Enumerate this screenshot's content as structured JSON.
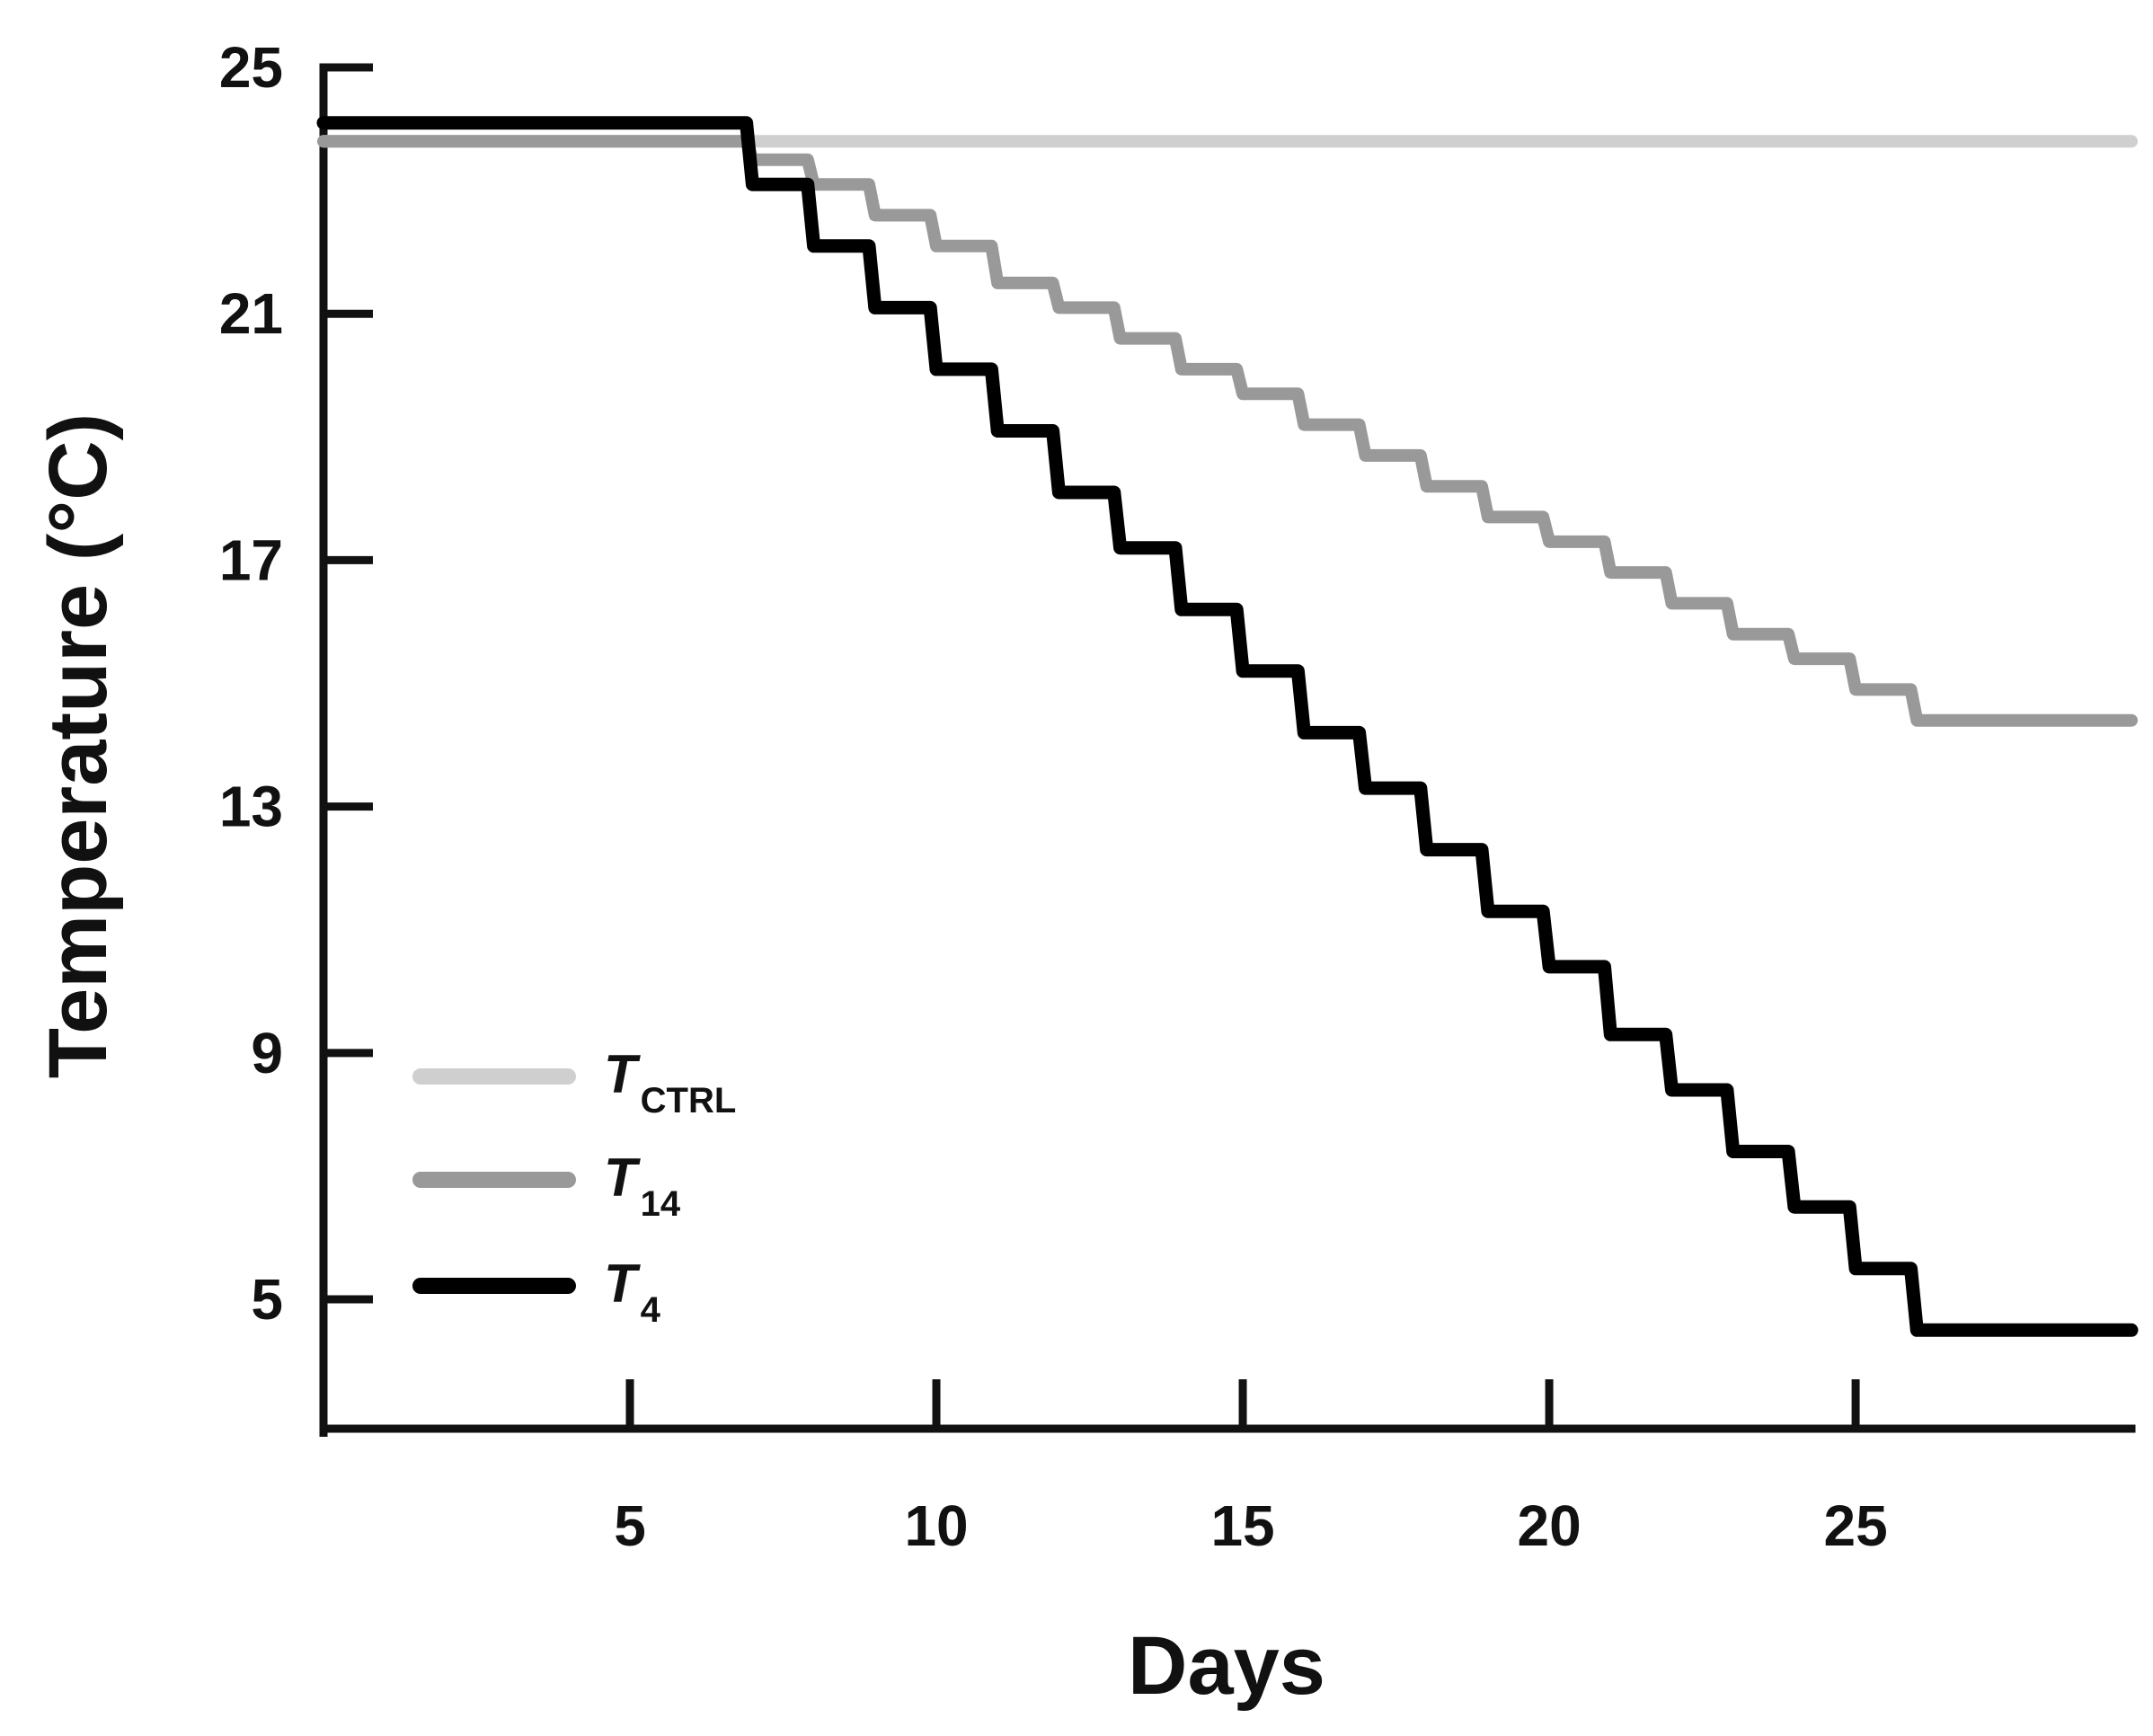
{
  "chart_data": {
    "type": "line",
    "title": "",
    "xlabel": "Days",
    "ylabel": "Temperature (°C)",
    "xlim": [
      0,
      29.5
    ],
    "ylim": [
      2.9,
      25
    ],
    "xticks": [
      5,
      10,
      15,
      20,
      25
    ],
    "yticks": [
      5,
      9,
      13,
      17,
      21,
      25
    ],
    "xtick_labels": [
      "5",
      "10",
      "15",
      "20",
      "25"
    ],
    "ytick_labels": [
      "5",
      "9",
      "13",
      "17",
      "21",
      "25"
    ],
    "grid": false,
    "legend_position": "bottom-left",
    "series": [
      {
        "name": "T_CTRL",
        "label_main": "T",
        "label_sub": "CTRL",
        "color": "#cfcfcf",
        "x": [
          0,
          29.5
        ],
        "y": [
          23.8,
          23.8
        ]
      },
      {
        "name": "T_14",
        "label_main": "T",
        "label_sub": "14",
        "color": "#999999",
        "x": [
          0,
          6.9,
          7.0,
          7.9,
          8.0,
          8.9,
          9.0,
          9.9,
          10.0,
          10.9,
          11.0,
          11.9,
          12.0,
          12.9,
          13.0,
          13.9,
          14.0,
          14.9,
          15.0,
          15.9,
          16.0,
          16.9,
          17.0,
          17.9,
          18.0,
          18.9,
          19.0,
          19.9,
          20.0,
          20.9,
          21.0,
          21.9,
          22.0,
          22.9,
          23.0,
          23.9,
          24.0,
          24.9,
          25.0,
          25.9,
          26.0,
          29.5
        ],
        "y": [
          23.8,
          23.8,
          23.5,
          23.5,
          23.1,
          23.1,
          22.6,
          22.6,
          22.1,
          22.1,
          21.5,
          21.5,
          21.1,
          21.1,
          20.6,
          20.6,
          20.1,
          20.1,
          19.7,
          19.7,
          19.2,
          19.2,
          18.7,
          18.7,
          18.2,
          18.2,
          17.7,
          17.7,
          17.3,
          17.3,
          16.8,
          16.8,
          16.3,
          16.3,
          15.8,
          15.8,
          15.4,
          15.4,
          14.9,
          14.9,
          14.4,
          14.4
        ]
      },
      {
        "name": "T_4",
        "label_main": "T",
        "label_sub": "4",
        "color": "#000000",
        "x": [
          0,
          6.9,
          7.0,
          7.9,
          8.0,
          8.9,
          9.0,
          9.9,
          10.0,
          10.9,
          11.0,
          11.9,
          12.0,
          12.9,
          13.0,
          13.9,
          14.0,
          14.9,
          15.0,
          15.9,
          16.0,
          16.9,
          17.0,
          17.9,
          18.0,
          18.9,
          19.0,
          19.9,
          20.0,
          20.9,
          21.0,
          21.9,
          22.0,
          22.9,
          23.0,
          23.9,
          24.0,
          24.9,
          25.0,
          25.9,
          26.0,
          29.5
        ],
        "y": [
          24.1,
          24.1,
          23.1,
          23.1,
          22.1,
          22.1,
          21.1,
          21.1,
          20.1,
          20.1,
          19.1,
          19.1,
          18.1,
          18.1,
          17.2,
          17.2,
          16.2,
          16.2,
          15.2,
          15.2,
          14.2,
          14.2,
          13.3,
          13.3,
          12.3,
          12.3,
          11.3,
          11.3,
          10.4,
          10.4,
          9.3,
          9.3,
          8.4,
          8.4,
          7.4,
          7.4,
          6.5,
          6.5,
          5.5,
          5.5,
          4.5,
          4.5
        ]
      }
    ]
  }
}
